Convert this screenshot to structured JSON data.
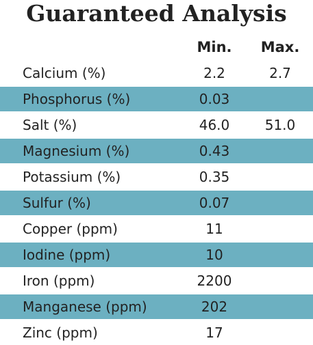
{
  "table": {
    "title": "Guaranteed Analysis",
    "columns": [
      "Min.",
      "Max."
    ],
    "rows": [
      [
        "Calcium (%)",
        "2.2",
        "2.7"
      ],
      [
        "Phosphorus (%)",
        "0.03"
      ],
      [
        "Salt (%)",
        "46.0",
        "51.0"
      ],
      [
        "Magnesium (%)",
        "0.43"
      ],
      [
        "Potassium (%)",
        "0.35"
      ],
      [
        "Sulfur (%)",
        "0.07"
      ],
      [
        "Copper (ppm)",
        "11"
      ],
      [
        "Iodine (ppm)",
        "10"
      ],
      [
        "Iron (ppm)",
        "2200"
      ],
      [
        "Manganese (ppm)",
        "202"
      ],
      [
        "Zinc (ppm)",
        "17"
      ]
    ]
  }
}
